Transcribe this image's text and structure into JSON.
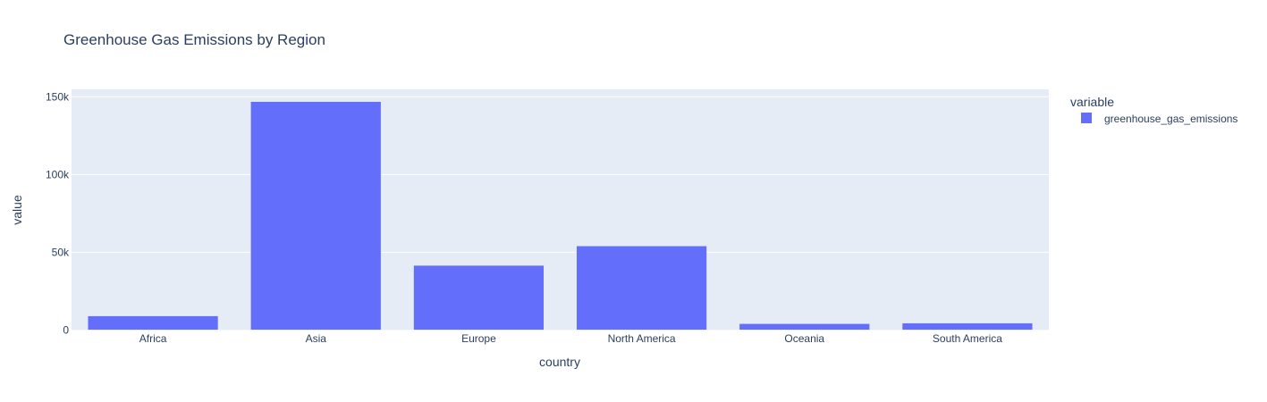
{
  "chart_data": {
    "type": "bar",
    "title": "Greenhouse Gas Emissions by Region",
    "xlabel": "country",
    "ylabel": "value",
    "categories": [
      "Africa",
      "Asia",
      "Europe",
      "North America",
      "Oceania",
      "South America"
    ],
    "series": [
      {
        "name": "greenhouse_gas_emissions",
        "values": [
          9000,
          146900,
          41500,
          54000,
          4000,
          4400
        ],
        "color": "#636efa"
      }
    ],
    "ylim": [
      0,
      154800
    ],
    "yticks": [
      0,
      50000,
      100000,
      150000
    ],
    "ytick_labels": [
      "0",
      "50k",
      "100k",
      "150k"
    ],
    "grid": true,
    "legend": {
      "title": "variable",
      "placement": "right"
    },
    "colors": {
      "plot_bg": "#e5ecf6",
      "grid": "#ffffff",
      "text": "#2a3f5f"
    }
  }
}
